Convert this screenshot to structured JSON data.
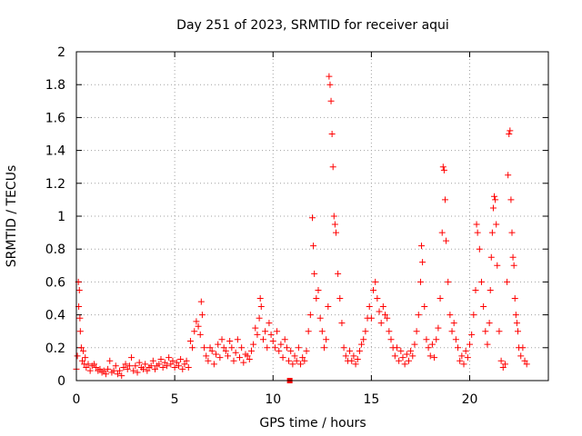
{
  "chart_data": {
    "type": "scatter",
    "title": "Day 251 of 2023, SRMTID for receiver aqui",
    "xlabel": "GPS time / hours",
    "ylabel": "SRMTID / TECUs",
    "xlim": [
      0,
      24
    ],
    "ylim": [
      0,
      2
    ],
    "xticks": [
      0,
      5,
      10,
      15,
      20
    ],
    "yticks": [
      0,
      0.2,
      0.4,
      0.6,
      0.8,
      1,
      1.2,
      1.4,
      1.6,
      1.8,
      2
    ],
    "grid": true,
    "marker": "plus",
    "color": "#ff0000",
    "series": [
      {
        "name": "SRMTID",
        "points": [
          [
            0.0,
            0.07
          ],
          [
            0.05,
            0.15
          ],
          [
            0.1,
            0.6
          ],
          [
            0.12,
            0.45
          ],
          [
            0.15,
            0.55
          ],
          [
            0.18,
            0.38
          ],
          [
            0.2,
            0.3
          ],
          [
            0.25,
            0.2
          ],
          [
            0.3,
            0.12
          ],
          [
            0.35,
            0.18
          ],
          [
            0.4,
            0.1
          ],
          [
            0.45,
            0.14
          ],
          [
            0.5,
            0.08
          ],
          [
            0.6,
            0.1
          ],
          [
            0.7,
            0.06
          ],
          [
            0.8,
            0.09
          ],
          [
            0.9,
            0.1
          ],
          [
            1.0,
            0.08
          ],
          [
            1.1,
            0.06
          ],
          [
            1.2,
            0.07
          ],
          [
            1.3,
            0.05
          ],
          [
            1.4,
            0.06
          ],
          [
            1.5,
            0.04
          ],
          [
            1.6,
            0.07
          ],
          [
            1.7,
            0.12
          ],
          [
            1.8,
            0.05
          ],
          [
            1.9,
            0.06
          ],
          [
            2.0,
            0.09
          ],
          [
            2.1,
            0.04
          ],
          [
            2.2,
            0.06
          ],
          [
            2.3,
            0.03
          ],
          [
            2.4,
            0.08
          ],
          [
            2.5,
            0.1
          ],
          [
            2.6,
            0.07
          ],
          [
            2.7,
            0.09
          ],
          [
            2.8,
            0.14
          ],
          [
            2.9,
            0.06
          ],
          [
            3.0,
            0.09
          ],
          [
            3.1,
            0.05
          ],
          [
            3.2,
            0.11
          ],
          [
            3.3,
            0.08
          ],
          [
            3.4,
            0.07
          ],
          [
            3.5,
            0.1
          ],
          [
            3.6,
            0.06
          ],
          [
            3.7,
            0.08
          ],
          [
            3.8,
            0.09
          ],
          [
            3.9,
            0.12
          ],
          [
            4.0,
            0.07
          ],
          [
            4.1,
            0.09
          ],
          [
            4.2,
            0.1
          ],
          [
            4.3,
            0.13
          ],
          [
            4.4,
            0.08
          ],
          [
            4.5,
            0.11
          ],
          [
            4.6,
            0.09
          ],
          [
            4.7,
            0.14
          ],
          [
            4.8,
            0.1
          ],
          [
            4.9,
            0.12
          ],
          [
            5.0,
            0.08
          ],
          [
            5.1,
            0.11
          ],
          [
            5.2,
            0.09
          ],
          [
            5.3,
            0.13
          ],
          [
            5.4,
            0.07
          ],
          [
            5.5,
            0.1
          ],
          [
            5.6,
            0.12
          ],
          [
            5.7,
            0.08
          ],
          [
            5.8,
            0.24
          ],
          [
            5.9,
            0.2
          ],
          [
            6.0,
            0.3
          ],
          [
            6.1,
            0.36
          ],
          [
            6.2,
            0.33
          ],
          [
            6.3,
            0.28
          ],
          [
            6.35,
            0.48
          ],
          [
            6.4,
            0.4
          ],
          [
            6.5,
            0.2
          ],
          [
            6.6,
            0.15
          ],
          [
            6.7,
            0.12
          ],
          [
            6.8,
            0.2
          ],
          [
            6.9,
            0.18
          ],
          [
            7.0,
            0.1
          ],
          [
            7.1,
            0.16
          ],
          [
            7.2,
            0.22
          ],
          [
            7.3,
            0.14
          ],
          [
            7.4,
            0.25
          ],
          [
            7.5,
            0.2
          ],
          [
            7.6,
            0.18
          ],
          [
            7.7,
            0.15
          ],
          [
            7.8,
            0.24
          ],
          [
            7.9,
            0.2
          ],
          [
            8.0,
            0.12
          ],
          [
            8.1,
            0.17
          ],
          [
            8.2,
            0.25
          ],
          [
            8.3,
            0.14
          ],
          [
            8.4,
            0.2
          ],
          [
            8.5,
            0.11
          ],
          [
            8.6,
            0.16
          ],
          [
            8.7,
            0.15
          ],
          [
            8.8,
            0.13
          ],
          [
            8.9,
            0.18
          ],
          [
            9.0,
            0.22
          ],
          [
            9.1,
            0.32
          ],
          [
            9.2,
            0.28
          ],
          [
            9.3,
            0.38
          ],
          [
            9.35,
            0.5
          ],
          [
            9.4,
            0.45
          ],
          [
            9.5,
            0.25
          ],
          [
            9.6,
            0.3
          ],
          [
            9.7,
            0.2
          ],
          [
            9.8,
            0.35
          ],
          [
            9.9,
            0.28
          ],
          [
            10.0,
            0.24
          ],
          [
            10.1,
            0.2
          ],
          [
            10.2,
            0.3
          ],
          [
            10.3,
            0.18
          ],
          [
            10.4,
            0.22
          ],
          [
            10.5,
            0.14
          ],
          [
            10.6,
            0.25
          ],
          [
            10.7,
            0.2
          ],
          [
            10.8,
            0.12
          ],
          [
            10.9,
            0.18
          ],
          [
            11.0,
            0.1
          ],
          [
            11.1,
            0.15
          ],
          [
            11.2,
            0.12
          ],
          [
            11.3,
            0.2
          ],
          [
            11.4,
            0.1
          ],
          [
            11.5,
            0.14
          ],
          [
            11.6,
            0.12
          ],
          [
            11.7,
            0.18
          ],
          [
            11.8,
            0.3
          ],
          [
            11.9,
            0.4
          ],
          [
            12.0,
            0.99
          ],
          [
            12.05,
            0.82
          ],
          [
            12.1,
            0.65
          ],
          [
            12.2,
            0.5
          ],
          [
            12.3,
            0.55
          ],
          [
            12.4,
            0.38
          ],
          [
            12.5,
            0.3
          ],
          [
            12.6,
            0.2
          ],
          [
            12.7,
            0.25
          ],
          [
            12.8,
            0.45
          ],
          [
            12.85,
            1.85
          ],
          [
            12.9,
            1.8
          ],
          [
            12.95,
            1.7
          ],
          [
            13.0,
            1.5
          ],
          [
            13.05,
            1.3
          ],
          [
            13.1,
            1.0
          ],
          [
            13.15,
            0.95
          ],
          [
            13.2,
            0.9
          ],
          [
            13.3,
            0.65
          ],
          [
            13.4,
            0.5
          ],
          [
            13.5,
            0.35
          ],
          [
            13.6,
            0.2
          ],
          [
            13.7,
            0.15
          ],
          [
            13.8,
            0.12
          ],
          [
            13.9,
            0.18
          ],
          [
            14.0,
            0.12
          ],
          [
            14.1,
            0.15
          ],
          [
            14.2,
            0.1
          ],
          [
            14.3,
            0.13
          ],
          [
            14.4,
            0.18
          ],
          [
            14.5,
            0.22
          ],
          [
            14.6,
            0.25
          ],
          [
            14.7,
            0.3
          ],
          [
            14.8,
            0.38
          ],
          [
            14.9,
            0.45
          ],
          [
            15.0,
            0.38
          ],
          [
            15.1,
            0.55
          ],
          [
            15.2,
            0.6
          ],
          [
            15.3,
            0.5
          ],
          [
            15.4,
            0.42
          ],
          [
            15.5,
            0.35
          ],
          [
            15.6,
            0.45
          ],
          [
            15.7,
            0.4
          ],
          [
            15.8,
            0.38
          ],
          [
            15.9,
            0.3
          ],
          [
            16.0,
            0.25
          ],
          [
            16.1,
            0.2
          ],
          [
            16.2,
            0.15
          ],
          [
            16.3,
            0.2
          ],
          [
            16.4,
            0.12
          ],
          [
            16.5,
            0.18
          ],
          [
            16.6,
            0.14
          ],
          [
            16.7,
            0.1
          ],
          [
            16.8,
            0.16
          ],
          [
            16.9,
            0.12
          ],
          [
            17.0,
            0.18
          ],
          [
            17.1,
            0.15
          ],
          [
            17.2,
            0.22
          ],
          [
            17.3,
            0.3
          ],
          [
            17.4,
            0.4
          ],
          [
            17.5,
            0.6
          ],
          [
            17.55,
            0.82
          ],
          [
            17.6,
            0.72
          ],
          [
            17.7,
            0.45
          ],
          [
            17.8,
            0.25
          ],
          [
            17.9,
            0.2
          ],
          [
            18.0,
            0.15
          ],
          [
            18.1,
            0.22
          ],
          [
            18.2,
            0.14
          ],
          [
            18.3,
            0.25
          ],
          [
            18.4,
            0.32
          ],
          [
            18.5,
            0.5
          ],
          [
            18.6,
            0.9
          ],
          [
            18.65,
            1.3
          ],
          [
            18.7,
            1.28
          ],
          [
            18.75,
            1.1
          ],
          [
            18.8,
            0.85
          ],
          [
            18.9,
            0.6
          ],
          [
            19.0,
            0.4
          ],
          [
            19.1,
            0.3
          ],
          [
            19.2,
            0.35
          ],
          [
            19.3,
            0.25
          ],
          [
            19.4,
            0.2
          ],
          [
            19.5,
            0.12
          ],
          [
            19.6,
            0.15
          ],
          [
            19.7,
            0.1
          ],
          [
            19.8,
            0.18
          ],
          [
            19.9,
            0.14
          ],
          [
            20.0,
            0.22
          ],
          [
            20.1,
            0.28
          ],
          [
            20.2,
            0.4
          ],
          [
            20.3,
            0.55
          ],
          [
            20.35,
            0.95
          ],
          [
            20.4,
            0.9
          ],
          [
            20.5,
            0.8
          ],
          [
            20.6,
            0.6
          ],
          [
            20.7,
            0.45
          ],
          [
            20.8,
            0.3
          ],
          [
            20.9,
            0.22
          ],
          [
            21.0,
            0.35
          ],
          [
            21.05,
            0.55
          ],
          [
            21.1,
            0.75
          ],
          [
            21.15,
            0.9
          ],
          [
            21.2,
            1.05
          ],
          [
            21.25,
            1.12
          ],
          [
            21.3,
            1.1
          ],
          [
            21.35,
            0.95
          ],
          [
            21.4,
            0.7
          ],
          [
            21.5,
            0.3
          ],
          [
            21.6,
            0.12
          ],
          [
            21.7,
            0.08
          ],
          [
            21.8,
            0.1
          ],
          [
            21.9,
            0.6
          ],
          [
            21.95,
            1.25
          ],
          [
            22.0,
            1.5
          ],
          [
            22.05,
            1.52
          ],
          [
            22.1,
            1.1
          ],
          [
            22.15,
            0.9
          ],
          [
            22.2,
            0.75
          ],
          [
            22.25,
            0.7
          ],
          [
            22.3,
            0.5
          ],
          [
            22.35,
            0.4
          ],
          [
            22.4,
            0.35
          ],
          [
            22.45,
            0.3
          ],
          [
            22.5,
            0.2
          ],
          [
            22.6,
            0.15
          ],
          [
            22.7,
            0.2
          ],
          [
            22.8,
            0.12
          ],
          [
            22.9,
            0.1
          ]
        ]
      }
    ],
    "annotations": [
      {
        "x": 10.85,
        "y": 0.0,
        "kind": "square-marker"
      }
    ]
  }
}
